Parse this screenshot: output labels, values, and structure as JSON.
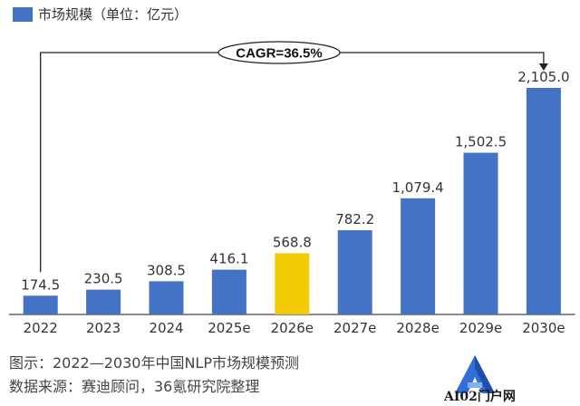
{
  "legend": {
    "label": "市场规模（单位：亿元）"
  },
  "colors": {
    "bar": "#4472c4",
    "highlight": "#f2cb05",
    "axis": "#444444",
    "text": "#333333"
  },
  "annotation": {
    "cagr_label": "CAGR=36.5%"
  },
  "chart_data": {
    "type": "bar",
    "categories": [
      "2022",
      "2023",
      "2024",
      "2025e",
      "2026e",
      "2027e",
      "2028e",
      "2029e",
      "2030e"
    ],
    "values": [
      174.5,
      230.5,
      308.5,
      416.1,
      568.8,
      782.2,
      1079.4,
      1502.5,
      2105.0
    ],
    "value_labels": [
      "174.5",
      "230.5",
      "308.5",
      "416.1",
      "568.8",
      "782.2",
      "1,079.4",
      "1,502.5",
      "2,105.0"
    ],
    "highlight_index": 4,
    "ylim": [
      0,
      2105.0
    ],
    "grid": false
  },
  "footer": {
    "caption": "图示：2022—2030年中国NLP市场规模预测",
    "source": "数据来源：赛迪顾问，36氪研究院整理"
  },
  "watermark": {
    "text": "AI02门户网",
    "icon": "a-logo-icon"
  }
}
